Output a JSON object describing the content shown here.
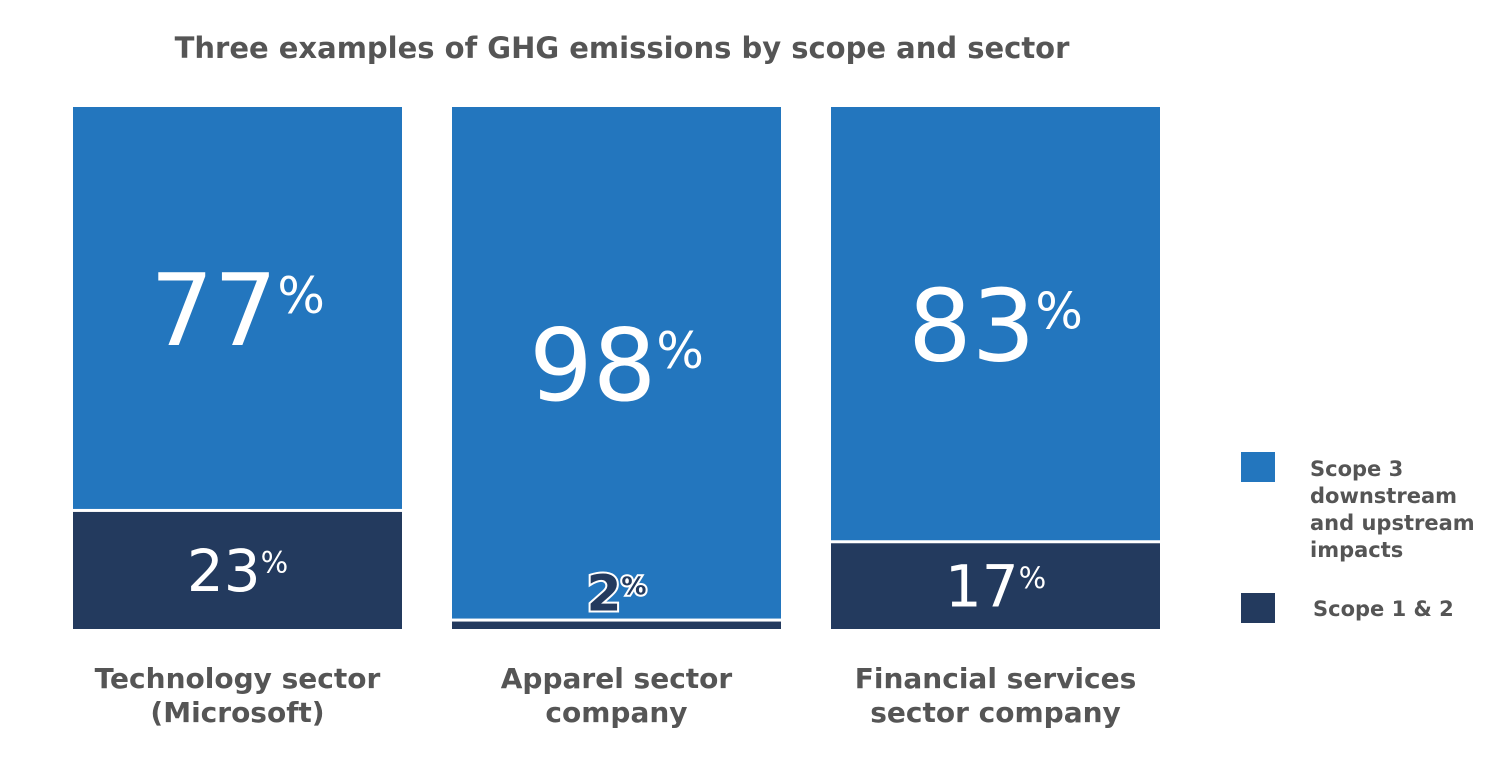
{
  "chart_data": {
    "type": "bar",
    "stacked": true,
    "percent": true,
    "title": "Three examples of GHG emissions by scope and sector",
    "categories": [
      [
        "Technology sector",
        "(Microsoft)"
      ],
      [
        "Apparel sector",
        "company"
      ],
      [
        "Financial services",
        "sector company"
      ]
    ],
    "series": [
      {
        "name": "Scope 1 & 2",
        "values": [
          23,
          2,
          17
        ],
        "color": "#233A5E"
      },
      {
        "name": "Scope 3 downstream and upstream impacts",
        "legend_lines": [
          "Scope 3",
          "downstream",
          "and upstream",
          "impacts"
        ],
        "values": [
          77,
          98,
          83
        ],
        "color": "#2376BE"
      }
    ],
    "value_suffix": "%",
    "ylim": [
      0,
      100
    ],
    "grid": false,
    "legend_placement": "right"
  }
}
